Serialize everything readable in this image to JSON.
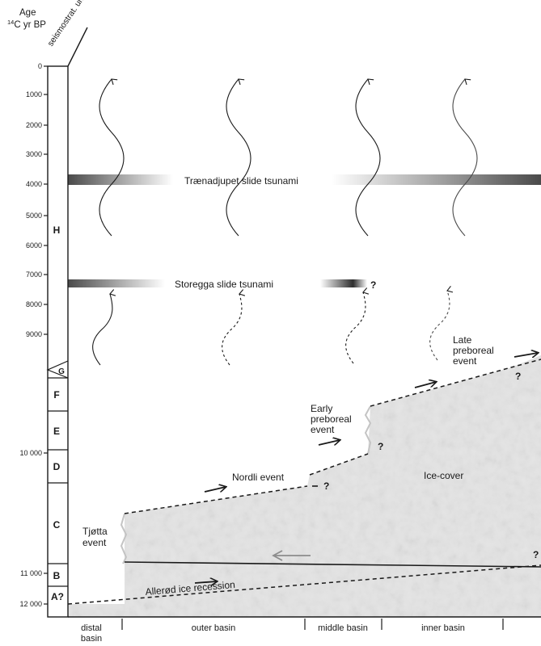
{
  "header": {
    "age_title": "Age",
    "age_unit_sup": "14",
    "age_unit": "C yr BP",
    "unit_title": "seismostrat. unit"
  },
  "age_ticks": [
    "0",
    "1000",
    "2000",
    "3000",
    "4000",
    "5000",
    "6000",
    "7000",
    "8000",
    "9000",
    "10 000",
    "11 000",
    "12 000"
  ],
  "units": [
    "H",
    "G",
    "F",
    "E",
    "D",
    "C",
    "B",
    "A?"
  ],
  "basins": [
    "distal basin",
    "outer basin",
    "middle basin",
    "inner basin"
  ],
  "tsunamis": {
    "traenadjupet": "Trænadjupet slide tsunami",
    "storegga": "Storegga slide tsunami"
  },
  "events": {
    "tjotta": "Tjøtta event",
    "nordli": "Nordli event",
    "early_preboreal": "Early preboreal event",
    "late_preboreal": "Late preboreal event",
    "allerod": "Allerød ice recession",
    "ice_cover": "Ice-cover"
  },
  "question_mark": "?",
  "colors": {
    "ice_fill": "#e4e4e4",
    "ice_edge": "#c8c8c8",
    "line": "#1a1a1a",
    "gray_arrow": "#8c8c8c",
    "gradient_dark": "#444444"
  }
}
